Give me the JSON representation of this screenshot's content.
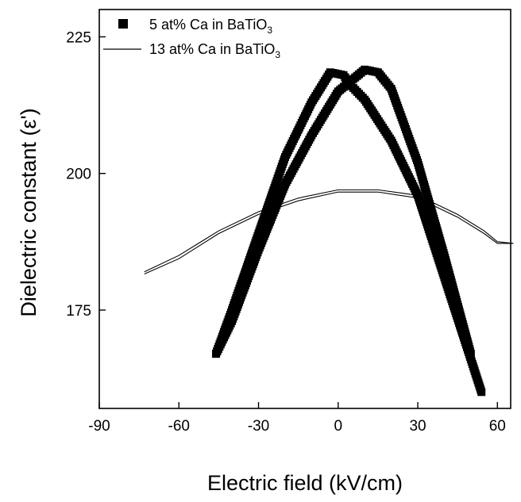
{
  "chart_data": {
    "type": "scatter",
    "title": "",
    "xlabel": "Electric field (kV/cm)",
    "ylabel": "Dielectric constant (ε')",
    "xlim": [
      -90,
      65
    ],
    "ylim": [
      157,
      230
    ],
    "x_ticks": [
      -90,
      -60,
      -30,
      0,
      30,
      60
    ],
    "y_ticks": [
      175,
      200,
      225
    ],
    "legend_position": "top-left",
    "grid": false,
    "series": [
      {
        "name_main": "5  at% Ca in BaTiO",
        "name_sub": "3",
        "style": "filled-square-markers",
        "color": "#000000",
        "branches": [
          {
            "x": [
              -46,
              -40,
              -30,
              -20,
              -10,
              -3,
              2,
              5,
              10,
              20,
              30,
              40,
              50,
              54
            ],
            "y": [
              167,
              175,
              189,
              203,
              213,
              218.5,
              218,
              216,
              213.5,
              206,
              196,
              181,
              166,
              160
            ]
          },
          {
            "x": [
              -46,
              -40,
              -30,
              -20,
              -10,
              0,
              10,
              15,
              20,
              30,
              40,
              50
            ],
            "y": [
              167,
              173,
              186,
              198,
              207,
              215,
              219,
              218.5,
              215.5,
              202,
              185,
              167
            ]
          }
        ]
      },
      {
        "name_main": "13 at% Ca in BaTiO",
        "name_sub": "3",
        "style": "double-thin-line",
        "color": "#000000",
        "branches": [
          {
            "x": [
              -73,
              -60,
              -45,
              -30,
              -15,
              0,
              15,
              30,
              45,
              55,
              60,
              66
            ],
            "y": [
              182,
              185,
              189.5,
              193,
              195.5,
              197,
              197,
              196,
              192.5,
              189.5,
              187.5,
              187.2
            ]
          },
          {
            "x": [
              -73,
              -60,
              -45,
              -30,
              -15,
              0,
              15,
              30,
              45,
              55,
              60,
              66
            ],
            "y": [
              181.6,
              184.4,
              189,
              192.5,
              195,
              196.6,
              196.6,
              195.5,
              192,
              189,
              187.2,
              187.2
            ]
          }
        ]
      }
    ]
  }
}
